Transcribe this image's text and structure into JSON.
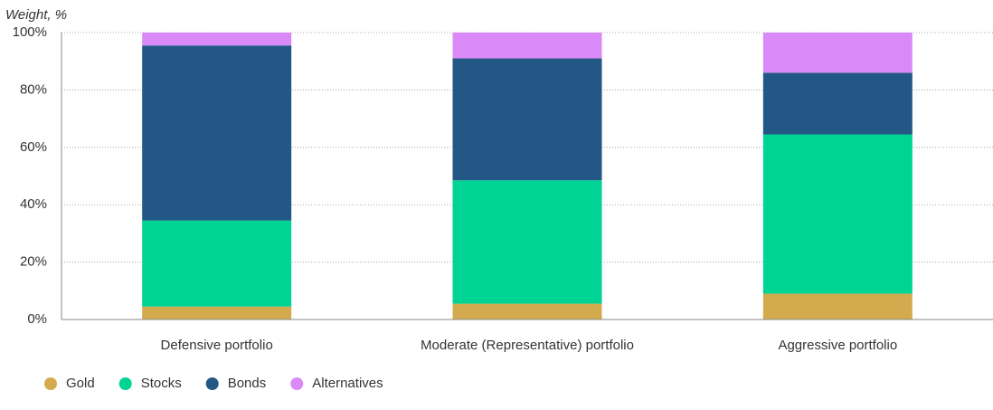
{
  "chart_data": {
    "type": "stacked-bar",
    "y_axis_label": "Weight, %",
    "categories": [
      "Defensive portfolio",
      "Moderate (Representative) portfolio",
      "Aggressive portfolio"
    ],
    "series": [
      {
        "name": "Gold",
        "color": "#d4aa4f",
        "values": [
          4.5,
          5.5,
          9
        ]
      },
      {
        "name": "Stocks",
        "color": "#00d494",
        "values": [
          30,
          43,
          55.5
        ]
      },
      {
        "name": "Bonds",
        "color": "#235886",
        "values": [
          61,
          42.5,
          21.5
        ]
      },
      {
        "name": "Alternatives",
        "color": "#da8af8",
        "values": [
          4.5,
          9,
          14
        ]
      }
    ],
    "ylim": [
      0,
      100
    ],
    "yticks": [
      {
        "value": 0,
        "label": "0%"
      },
      {
        "value": 20,
        "label": "20%"
      },
      {
        "value": 40,
        "label": "40%"
      },
      {
        "value": 60,
        "label": "60%"
      },
      {
        "value": 80,
        "label": "80%"
      },
      {
        "value": 100,
        "label": "100%"
      }
    ],
    "grid": true
  }
}
